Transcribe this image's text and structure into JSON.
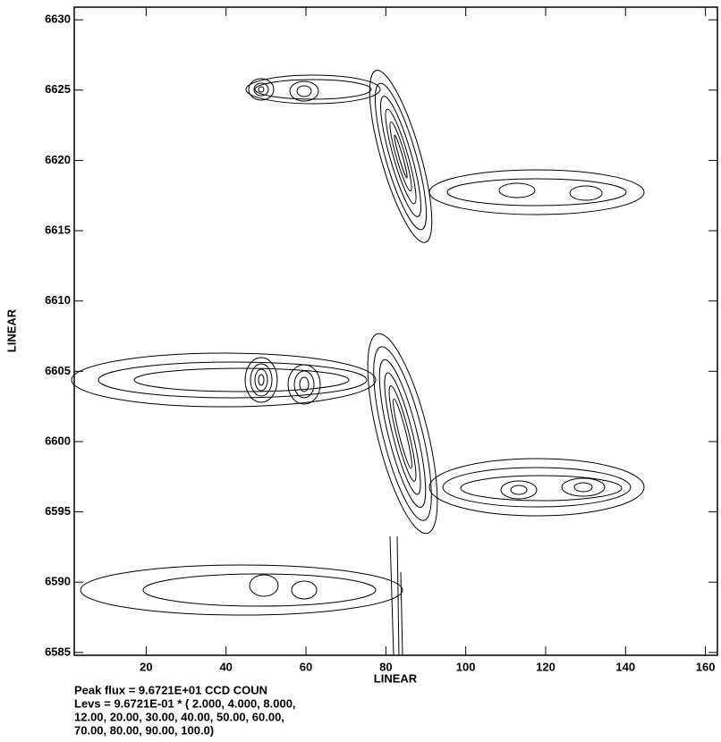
{
  "chart_data": {
    "type": "contour",
    "x_label": "LINEAR",
    "y_label": "LINEAR",
    "xlim": [
      2,
      163
    ],
    "ylim": [
      6584.8,
      6630.9
    ],
    "xticks": [
      20,
      40,
      60,
      80,
      100,
      120,
      140,
      160
    ],
    "yticks": [
      6585,
      6590,
      6595,
      6600,
      6605,
      6610,
      6615,
      6620,
      6625,
      6630
    ],
    "notes": [
      "Peak flux =  9.6721E+01 CCD COUN",
      "Levs =  9.6721E-01 * (  2.000, 4.000, 8.000,",
      " 12.00, 20.00, 30.00, 40.00, 50.00, 60.00,",
      " 70.00, 80.00, 90.00, 100.0)"
    ]
  }
}
